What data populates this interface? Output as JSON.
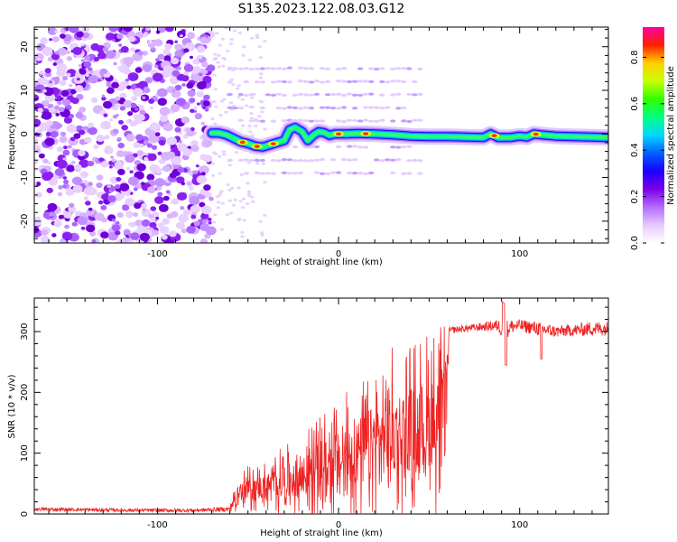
{
  "title": "S135.2023.122.08.03.G12",
  "colors": {
    "snr_line": "#ee2222",
    "colormap": [
      "#ffffff",
      "#e6c8ff",
      "#b46bff",
      "#7a00e6",
      "#1a00ff",
      "#0060ff",
      "#00d8ff",
      "#00ff80",
      "#30ff00",
      "#c8ff00",
      "#ffd000",
      "#ff2000",
      "#ff00a0"
    ]
  },
  "chart_data": [
    {
      "type": "heatmap",
      "xlabel": "Height of straight line (km)",
      "ylabel": "Frequency (Hz)",
      "xlim": [
        -168,
        149
      ],
      "ylim": [
        -25,
        24.5
      ],
      "xticks": [
        -100,
        0,
        100
      ],
      "yticks": [
        -20,
        -10,
        0,
        10,
        20
      ],
      "colorbar": {
        "label": "Normalized spectral amplitude",
        "range": [
          0,
          0.93
        ],
        "ticks": [
          "0.0",
          "0.2",
          "0.4",
          "0.6",
          "0.8"
        ],
        "tick_values": [
          0,
          0.2,
          0.4,
          0.6,
          0.8
        ]
      },
      "noise_region_x": [
        -168,
        -70
      ],
      "ridge": {
        "x": [
          -70,
          -66,
          -62,
          -58,
          -54,
          -50,
          -46,
          -42,
          -38,
          -34,
          -30,
          -27,
          -24,
          -20,
          -17,
          -14,
          -11,
          -8,
          -5,
          -2,
          0,
          5,
          10,
          20,
          30,
          40,
          50,
          60,
          70,
          80,
          84,
          88,
          95,
          100,
          104,
          108,
          112,
          120,
          130,
          140,
          149
        ],
        "freq": [
          0.2,
          0.2,
          -0.2,
          -1.0,
          -1.8,
          -2.2,
          -2.8,
          -3.0,
          -2.5,
          -2.0,
          -1.5,
          1.0,
          1.5,
          0.5,
          -1.5,
          -0.3,
          0.5,
          0.3,
          -0.3,
          0.0,
          0.0,
          0.0,
          0.1,
          0.0,
          -0.2,
          -0.5,
          -0.6,
          -0.6,
          -0.7,
          -0.8,
          0.0,
          -0.8,
          -0.8,
          -0.5,
          -0.7,
          0.0,
          -0.2,
          -0.5,
          -0.6,
          -0.7,
          -0.8
        ]
      },
      "hot_spots_x": [
        -53,
        -45,
        -36,
        0,
        15,
        86,
        109
      ],
      "sidelobe_freqs": [
        -9,
        -6,
        -3,
        3,
        6,
        9,
        12,
        15
      ],
      "sidelobe_x_range": [
        -60,
        48
      ]
    },
    {
      "type": "line",
      "xlabel": "Height of straight line (km)",
      "ylabel": "SNR (10 * v/v)",
      "xlim": [
        -168,
        149
      ],
      "ylim": [
        0,
        355
      ],
      "xticks": [
        -100,
        0,
        100
      ],
      "yticks": [
        0,
        100,
        200,
        300
      ],
      "series": [
        {
          "x": [
            -168,
            -140,
            -110,
            -80,
            -60,
            -57,
            -50,
            -40,
            -30,
            -20,
            -10,
            0,
            10,
            20,
            30,
            40,
            50,
            59,
            61,
            70,
            80,
            88,
            92,
            95,
            100,
            110,
            120,
            130,
            140,
            149
          ],
          "center": [
            8,
            7,
            6,
            6,
            8,
            30,
            40,
            45,
            55,
            60,
            75,
            85,
            100,
            120,
            135,
            140,
            150,
            160,
            302,
            305,
            308,
            310,
            300,
            308,
            310,
            305,
            300,
            302,
            305,
            305
          ],
          "noise": [
            3,
            3,
            3,
            3,
            4,
            25,
            30,
            35,
            45,
            55,
            70,
            80,
            90,
            100,
            110,
            115,
            120,
            125,
            5,
            6,
            7,
            10,
            20,
            12,
            10,
            12,
            10,
            10,
            12,
            12
          ]
        }
      ]
    }
  ]
}
